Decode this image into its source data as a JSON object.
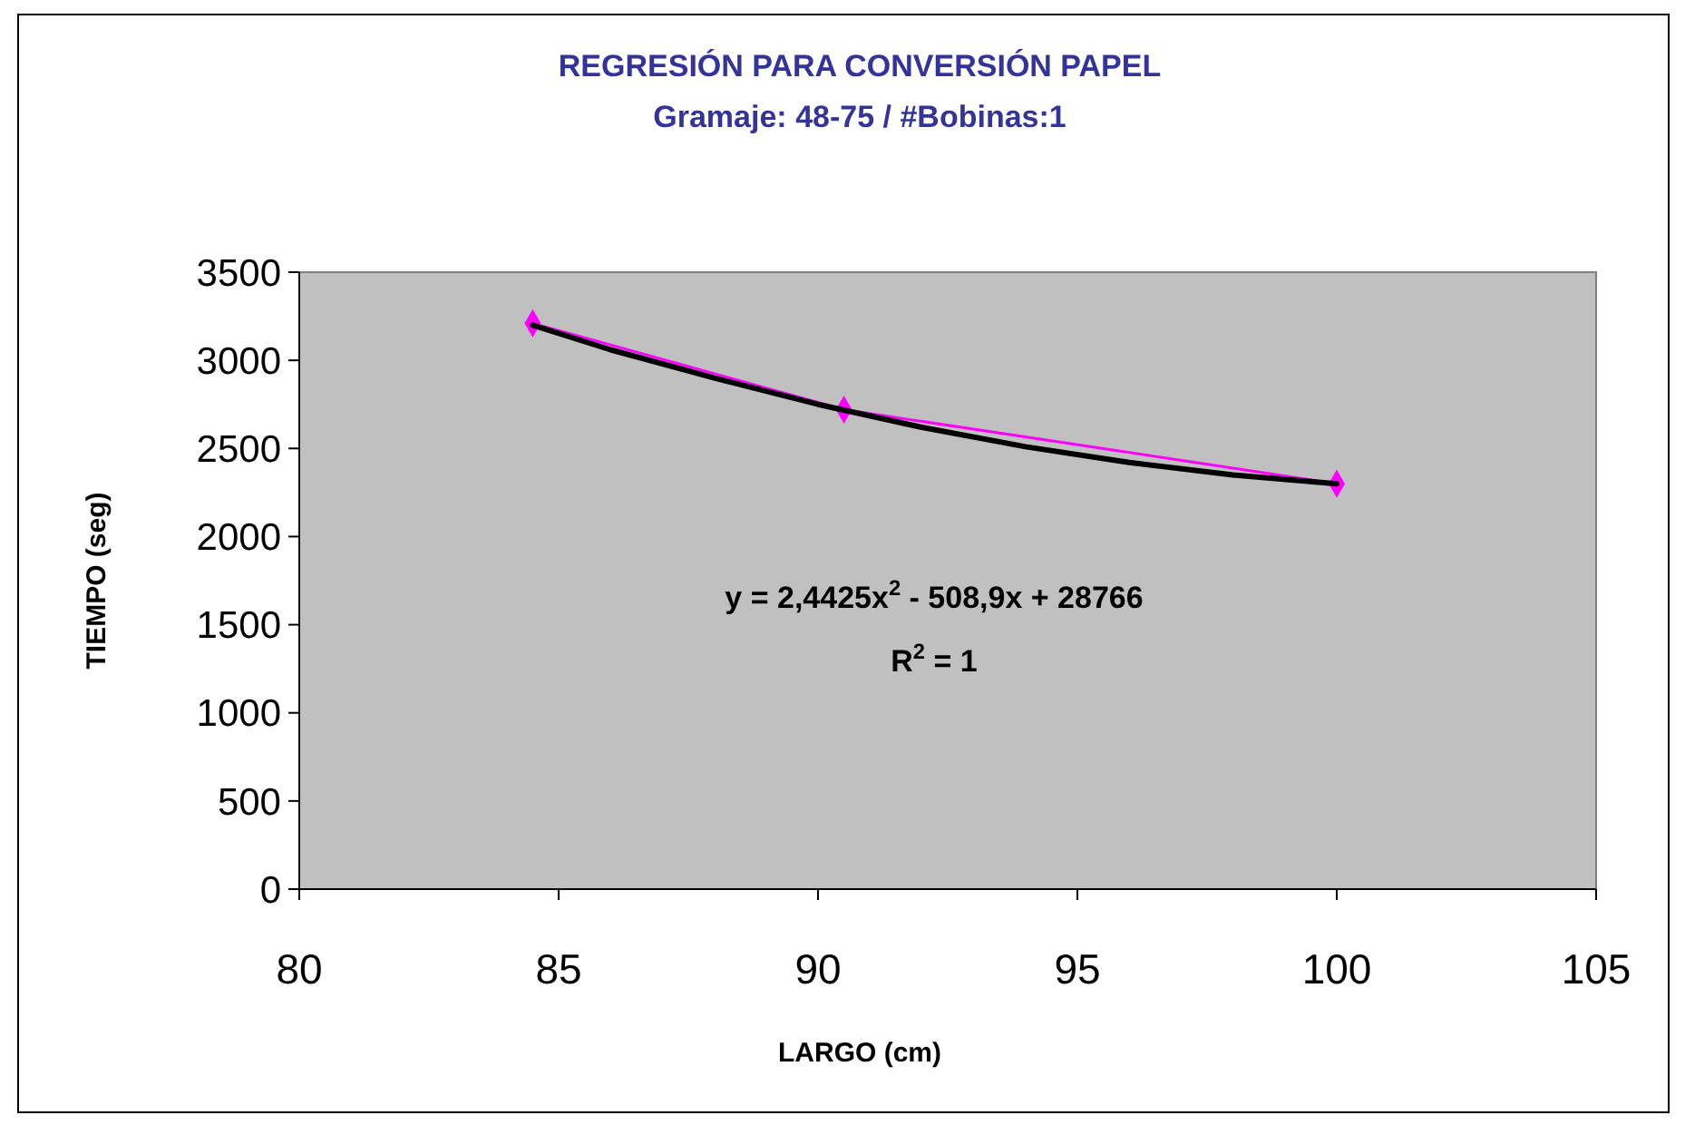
{
  "chart_data": {
    "type": "line",
    "title": "REGRESIÓN PARA CONVERSIÓN PAPEL",
    "subtitle": "Gramaje: 48-75 / #Bobinas:1",
    "xlabel": "LARGO (cm)",
    "ylabel": "TIEMPO (seg)",
    "xlim": [
      80,
      105
    ],
    "xticks": [
      80,
      85,
      90,
      95,
      100,
      105
    ],
    "ylim": [
      0,
      3500
    ],
    "yticks": [
      0,
      500,
      1000,
      1500,
      2000,
      2500,
      3000,
      3500
    ],
    "grid": false,
    "series": [
      {
        "color": "#ff00ff",
        "marker": "diamond",
        "x": [
          84.5,
          90.5,
          100
        ],
        "values": [
          3210,
          2720,
          2300
        ]
      },
      {
        "type": "line",
        "color": "#000000",
        "marker": "none",
        "x": [
          84.5,
          86,
          88,
          90,
          92,
          94,
          96,
          98,
          100
        ],
        "values": [
          3200,
          3060,
          2900,
          2750,
          2620,
          2510,
          2420,
          2350,
          2300
        ]
      }
    ],
    "annotations": [
      "y = 2,4425x$^{2}$ - 508,9x + 28766",
      "R$^{2}$ = 1"
    ]
  }
}
